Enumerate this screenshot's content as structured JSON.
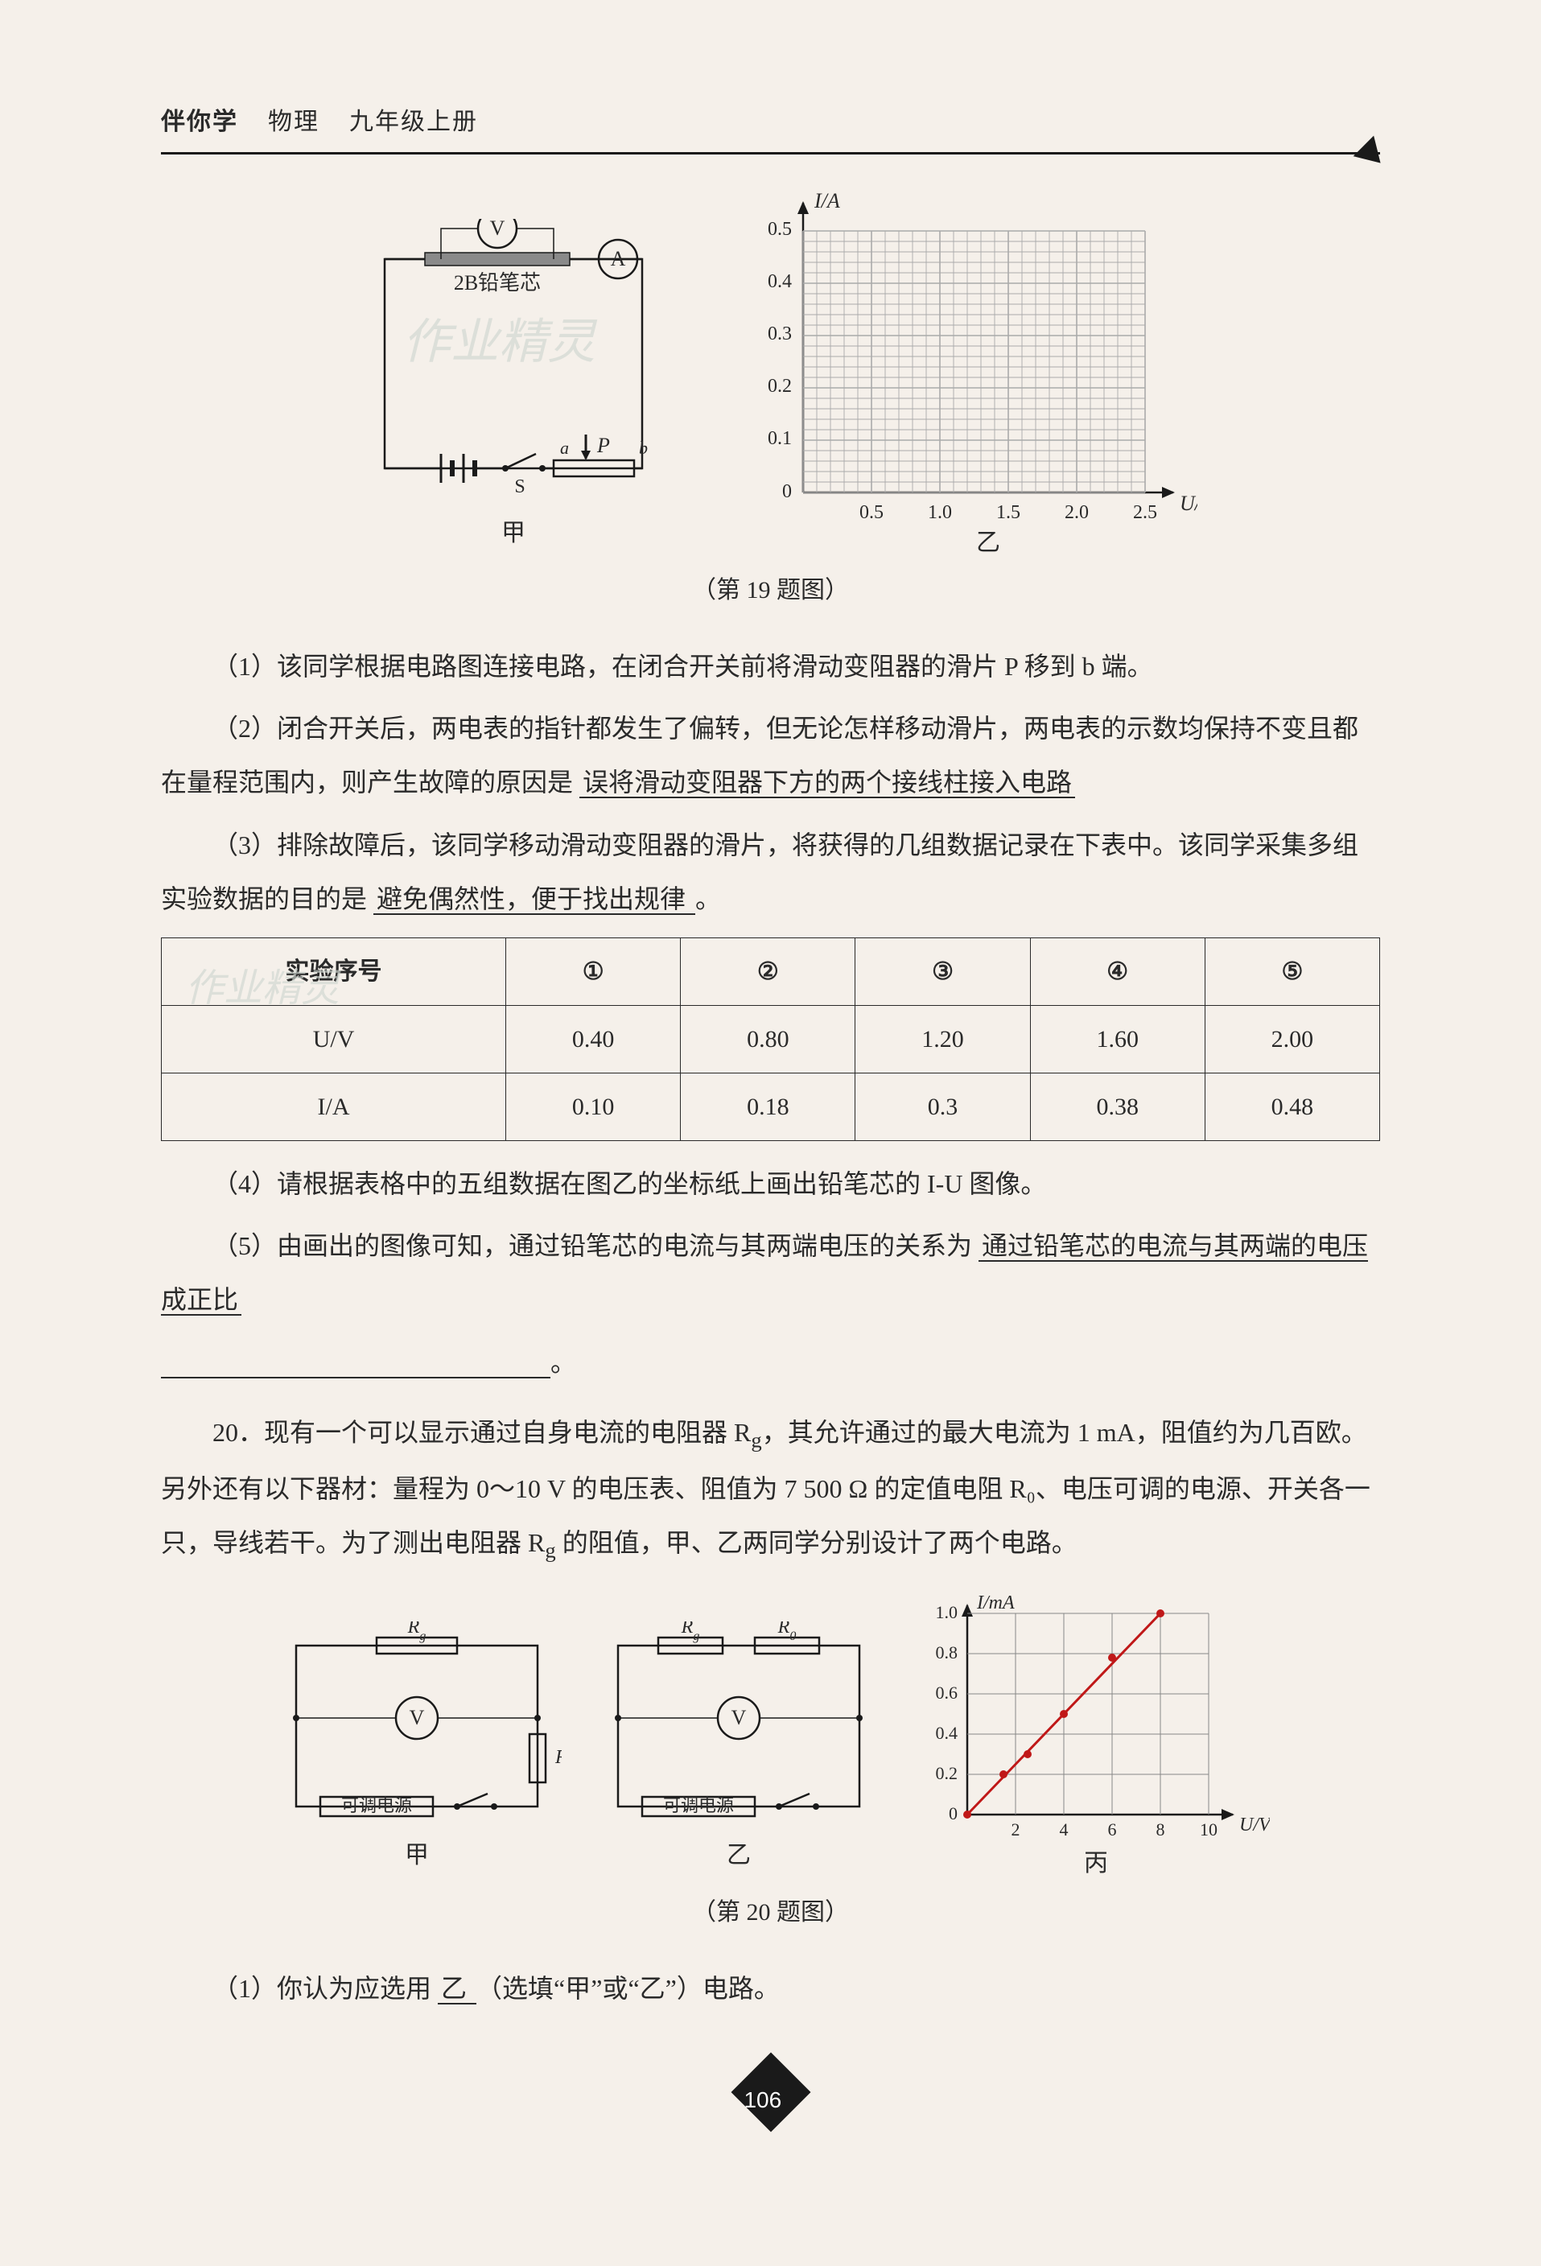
{
  "header": {
    "series": "伴你学",
    "subject": "物理",
    "grade": "九年级上册"
  },
  "watermarks": {
    "wm1": "作业精灵",
    "wm2": "作业精灵"
  },
  "fig19": {
    "caption": "（第 19 题图）",
    "circuit": {
      "voltmeter": "V",
      "ammeter": "A",
      "pencil_lead": "2B铅笔芯",
      "switch": "S",
      "slider": "P",
      "a": "a",
      "b": "b",
      "label": "甲"
    },
    "grid": {
      "y_axis": "I/A",
      "x_axis": "U/V",
      "y_ticks": [
        "0",
        "0.1",
        "0.2",
        "0.3",
        "0.4",
        "0.5"
      ],
      "x_ticks": [
        "0",
        "0.5",
        "1.0",
        "1.5",
        "2.0",
        "2.5"
      ],
      "label": "乙",
      "grid_color": "#999999",
      "bg": "#ffffff"
    }
  },
  "q19": {
    "p1": "（1）该同学根据电路图连接电路，在闭合开关前将滑动变阻器的滑片 P 移到 b 端。",
    "p2_a": "（2）闭合开关后，两电表的指针都发生了偏转，但无论怎样移动滑片，两电表的示数均保持不变且都在量程范围内，则产生故障的原因是",
    "p2_ans": "误将滑动变阻器下方的两个接线柱接入电路",
    "p3_a": "（3）排除故障后，该同学移动滑动变阻器的滑片，将获得的几组数据记录在下表中。该同学采集多组实验数据的目的是",
    "p3_ans": " 避免偶然性，便于找出规律 ",
    "p3_end": "。",
    "p4": "（4）请根据表格中的五组数据在图乙的坐标纸上画出铅笔芯的 I-U 图像。",
    "p5_a": "（5）由画出的图像可知，通过铅笔芯的电流与其两端电压的关系为",
    "p5_ans": " 通过铅笔芯的电流与其两端的电压成正比",
    "p5_end": "。"
  },
  "table19": {
    "head": [
      "实验序号",
      "①",
      "②",
      "③",
      "④",
      "⑤"
    ],
    "rows": [
      [
        "U/V",
        "0.40",
        "0.80",
        "1.20",
        "1.60",
        "2.00"
      ],
      [
        "I/A",
        "0.10",
        "0.18",
        "0.3",
        "0.38",
        "0.48"
      ]
    ]
  },
  "q20": {
    "intro_a": "20．现有一个可以显示通过自身电流的电阻器 R",
    "intro_sub": "g",
    "intro_b": "，其允许通过的最大电流为 1 mA，阻值约为几百欧。另外还有以下器材：量程为 0～10 V 的电压表、阻值为 7 500 Ω 的定值电阻 R₀、电压可调的电源、开关各一只，导线若干。为了测出电阻器 R",
    "intro_c": " 的阻值，甲、乙两同学分别设计了两个电路。",
    "p1_a": "（1）你认为应选用",
    "p1_ans": "  乙  ",
    "p1_b": "（选填“甲”或“乙”）电路。"
  },
  "fig20": {
    "caption": "（第 20 题图）",
    "src_label": "可调电源",
    "Rg": "Rg",
    "R0": "R₀",
    "V": "V",
    "label_a": "甲",
    "label_b": "乙",
    "label_c": "丙",
    "chart": {
      "y_axis": "I/mA",
      "x_axis": "U/V",
      "y_ticks": [
        "0",
        "0.2",
        "0.4",
        "0.6",
        "0.8",
        "1.0"
      ],
      "x_ticks": [
        "2",
        "4",
        "6",
        "8",
        "10"
      ],
      "line_color": "#c01818",
      "points": [
        [
          0,
          0
        ],
        [
          1.5,
          0.2
        ],
        [
          2.5,
          0.3
        ],
        [
          4,
          0.5
        ],
        [
          6,
          0.78
        ],
        [
          8,
          1.0
        ]
      ]
    }
  },
  "page_num": "106"
}
